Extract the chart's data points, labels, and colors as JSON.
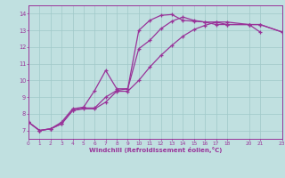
{
  "xlabel": "Windchill (Refroidissement éolien,°C)",
  "bg_color": "#c0e0e0",
  "line_color": "#993399",
  "xlim": [
    0,
    23
  ],
  "ylim": [
    6.5,
    14.5
  ],
  "xticks": [
    0,
    1,
    2,
    3,
    4,
    5,
    6,
    7,
    8,
    9,
    10,
    11,
    12,
    13,
    14,
    15,
    16,
    17,
    18,
    20,
    21,
    23
  ],
  "yticks": [
    7,
    8,
    9,
    10,
    11,
    12,
    13,
    14
  ],
  "grid_color": "#a0c8c8",
  "lines": [
    {
      "x": [
        0,
        1,
        2,
        3,
        4,
        5,
        6,
        7,
        8,
        9,
        10,
        11,
        12,
        13,
        14,
        15,
        16,
        17,
        18,
        20,
        21
      ],
      "y": [
        7.5,
        7.0,
        7.1,
        7.5,
        8.3,
        8.4,
        9.4,
        10.6,
        9.5,
        9.5,
        13.0,
        13.6,
        13.9,
        13.95,
        13.6,
        13.55,
        13.5,
        13.35,
        13.35,
        13.35,
        12.9
      ]
    },
    {
      "x": [
        0,
        1,
        2,
        3,
        4,
        5,
        6,
        7,
        8,
        9,
        10,
        11,
        12,
        13,
        14,
        15,
        16,
        17,
        18,
        20,
        21,
        23
      ],
      "y": [
        7.5,
        7.0,
        7.1,
        7.4,
        8.2,
        8.35,
        8.35,
        9.0,
        9.4,
        9.5,
        11.9,
        12.4,
        13.1,
        13.55,
        13.8,
        13.6,
        13.5,
        13.5,
        13.35,
        13.35,
        13.35,
        12.9
      ]
    },
    {
      "x": [
        0,
        1,
        2,
        3,
        4,
        5,
        6,
        7,
        8,
        9,
        10,
        11,
        12,
        13,
        14,
        15,
        16,
        17,
        18,
        20,
        21,
        23
      ],
      "y": [
        7.5,
        7.0,
        7.1,
        7.4,
        8.2,
        8.3,
        8.3,
        8.7,
        9.35,
        9.35,
        10.0,
        10.8,
        11.5,
        12.1,
        12.65,
        13.05,
        13.3,
        13.5,
        13.5,
        13.35,
        13.35,
        12.9
      ]
    }
  ]
}
